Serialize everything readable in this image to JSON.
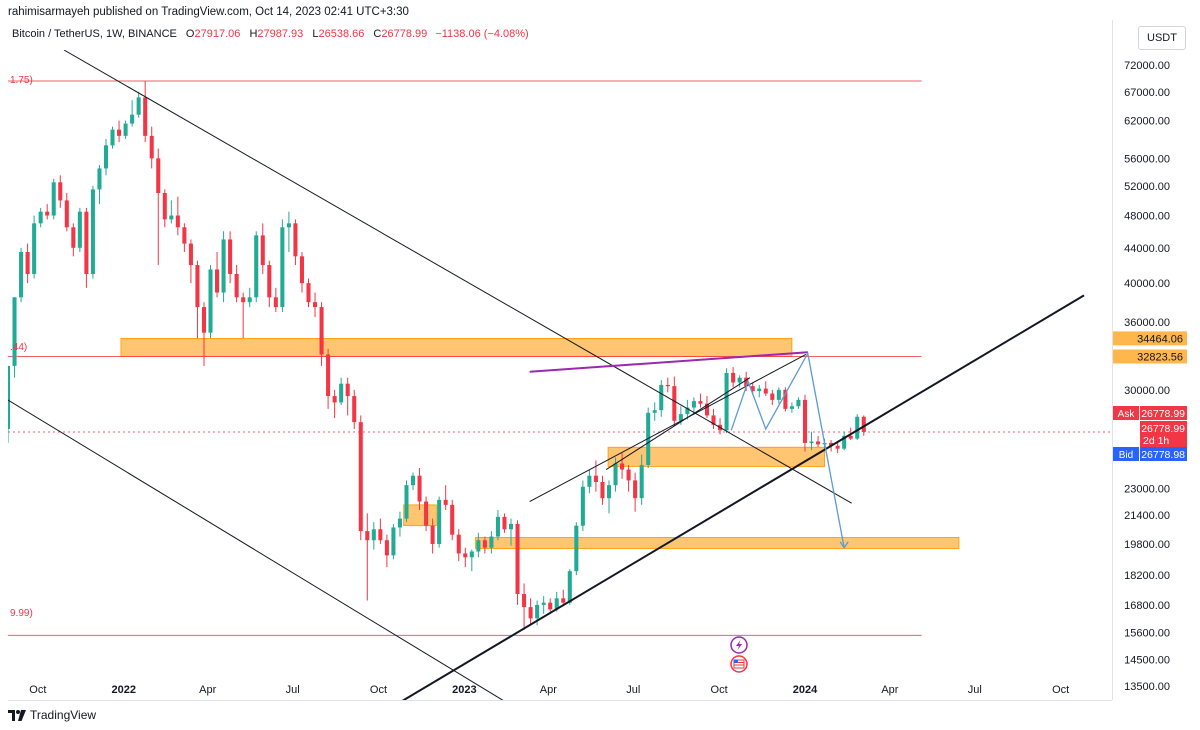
{
  "header": {
    "published_by": "rahimisarmayeh published on TradingView.com, Oct 14, 2023 02:41 UTC+3:30"
  },
  "legend": {
    "symbol": "Bitcoin / TetherUS, 1W, BINANCE",
    "open_label": "O",
    "open": "27917.06",
    "high_label": "H",
    "high": "27987.93",
    "low_label": "L",
    "low": "26538.66",
    "close_label": "C",
    "close": "26778.99",
    "change": "−1138.06 (−4.08%)"
  },
  "currency_button": "USDT",
  "brand": "TradingView",
  "fib_labels": {
    "top": "1.75)",
    "mid": ".44)",
    "bottom": "9.99)"
  },
  "price_tags": {
    "res1": "34464.06",
    "res2": "32823.56",
    "ask_label": "Ask",
    "ask": "26778.99",
    "last": "26778.99",
    "countdown": "2d 1h",
    "bid_label": "Bid",
    "bid": "26778.98"
  },
  "colors": {
    "up": "#22ab94",
    "down": "#f23645",
    "zone": "#ffb74d",
    "fib_line": "#f23645",
    "wedge_top": "#9c27b0",
    "projection": "#5b9bd5",
    "ask_bg": "#f23645",
    "bid_bg": "#2962ff"
  },
  "icons": [
    "lightning-icon",
    "us-flag-calendar-icon",
    "tradingview-logo-icon"
  ],
  "chart_data": {
    "type": "candlestick",
    "scale": "log",
    "ylim": [
      13000,
      75000
    ],
    "x_range": [
      "2021-08-30",
      "2024-11-25"
    ],
    "y_ticks": [
      72000,
      67000,
      62000,
      56000,
      52000,
      48000,
      44000,
      40000,
      36000,
      30000,
      23000,
      21400,
      19800,
      18200,
      16800,
      15600,
      14500,
      13500
    ],
    "x_ticks": [
      {
        "date": "2021-10-01",
        "label": "Oct"
      },
      {
        "date": "2022-01-01",
        "label": "2022"
      },
      {
        "date": "2022-04-01",
        "label": "Apr"
      },
      {
        "date": "2022-07-01",
        "label": "Jul"
      },
      {
        "date": "2022-10-01",
        "label": "Oct"
      },
      {
        "date": "2023-01-01",
        "label": "2023"
      },
      {
        "date": "2023-04-01",
        "label": "Apr"
      },
      {
        "date": "2023-07-01",
        "label": "Jul"
      },
      {
        "date": "2023-10-01",
        "label": "Oct"
      },
      {
        "date": "2024-01-01",
        "label": "2024"
      },
      {
        "date": "2024-04-01",
        "label": "Apr"
      },
      {
        "date": "2024-07-01",
        "label": "Jul"
      },
      {
        "date": "2024-10-01",
        "label": "Oct"
      }
    ],
    "candles": [
      [
        "2021-08-30",
        27000,
        32000,
        26000,
        32000
      ],
      [
        "2021-09-06",
        32000,
        38500,
        31000,
        38500
      ],
      [
        "2021-09-13",
        38500,
        44000,
        38000,
        43500
      ],
      [
        "2021-09-20",
        43500,
        44500,
        40000,
        41000
      ],
      [
        "2021-09-27",
        41000,
        48000,
        40500,
        47000
      ],
      [
        "2021-10-04",
        47000,
        49000,
        46500,
        48500
      ],
      [
        "2021-10-11",
        48500,
        49500,
        47500,
        48000
      ],
      [
        "2021-10-18",
        48000,
        53000,
        47500,
        52500
      ],
      [
        "2021-10-25",
        52500,
        53500,
        49000,
        50000
      ],
      [
        "2021-11-01",
        50000,
        51000,
        46000,
        46500
      ],
      [
        "2021-11-08",
        46500,
        47000,
        43000,
        44000
      ],
      [
        "2021-11-15",
        44000,
        49000,
        43500,
        48500
      ],
      [
        "2021-11-22",
        48500,
        49000,
        39500,
        41000
      ],
      [
        "2021-11-29",
        41000,
        52000,
        40500,
        51500
      ],
      [
        "2021-12-06",
        51500,
        55000,
        49500,
        54500
      ],
      [
        "2021-12-13",
        54500,
        59000,
        53500,
        58000
      ],
      [
        "2021-12-20",
        58000,
        61000,
        57500,
        60500
      ],
      [
        "2021-12-27",
        60500,
        62000,
        58500,
        59500
      ],
      [
        "2022-01-03",
        59500,
        62000,
        59000,
        61500
      ],
      [
        "2022-01-10",
        61500,
        65500,
        61000,
        63000
      ],
      [
        "2022-01-17",
        63000,
        67000,
        62500,
        66000
      ],
      [
        "2022-01-24",
        66000,
        69000,
        58500,
        59500
      ],
      [
        "2022-01-31",
        59500,
        61000,
        54500,
        56000
      ],
      [
        "2022-02-07",
        56000,
        57500,
        42000,
        51000
      ],
      [
        "2022-02-14",
        51000,
        51500,
        46500,
        47500
      ],
      [
        "2022-02-21",
        47500,
        50000,
        47000,
        48000
      ],
      [
        "2022-02-28",
        48000,
        50500,
        45500,
        46500
      ],
      [
        "2022-03-07",
        46500,
        47000,
        43500,
        44500
      ],
      [
        "2022-03-14",
        44500,
        45000,
        40000,
        42000
      ],
      [
        "2022-03-21",
        42000,
        42500,
        34500,
        37500
      ],
      [
        "2022-03-28",
        37500,
        38000,
        32000,
        35000
      ],
      [
        "2022-04-04",
        35000,
        42000,
        34500,
        41500
      ],
      [
        "2022-04-11",
        41500,
        43500,
        38500,
        39000
      ],
      [
        "2022-04-18",
        39000,
        46000,
        38000,
        45000
      ],
      [
        "2022-04-25",
        45000,
        46000,
        40000,
        41000
      ],
      [
        "2022-05-02",
        41000,
        42000,
        38000,
        38500
      ],
      [
        "2022-05-09",
        38500,
        39000,
        34500,
        38000
      ],
      [
        "2022-05-16",
        38000,
        39500,
        37500,
        38500
      ],
      [
        "2022-05-23",
        38500,
        46000,
        38000,
        45500
      ],
      [
        "2022-05-30",
        45500,
        47000,
        41000,
        42000
      ],
      [
        "2022-06-06",
        42000,
        42500,
        37500,
        38500
      ],
      [
        "2022-06-13",
        38500,
        39500,
        37000,
        37500
      ],
      [
        "2022-06-20",
        37500,
        47500,
        37000,
        46500
      ],
      [
        "2022-06-27",
        46500,
        48500,
        43500,
        47000
      ],
      [
        "2022-07-04",
        47000,
        47500,
        42000,
        43000
      ],
      [
        "2022-07-11",
        43000,
        43500,
        39000,
        40000
      ],
      [
        "2022-07-18",
        40000,
        40500,
        37500,
        38000
      ],
      [
        "2022-07-25",
        38000,
        39000,
        36500,
        37500
      ],
      [
        "2022-08-01",
        37500,
        38000,
        32000,
        33000
      ],
      [
        "2022-08-08",
        33000,
        33500,
        28500,
        29500
      ],
      [
        "2022-08-15",
        29500,
        30000,
        27800,
        29000
      ],
      [
        "2022-08-22",
        29000,
        31000,
        28800,
        30500
      ],
      [
        "2022-08-29",
        30500,
        31000,
        28000,
        29500
      ],
      [
        "2022-09-05",
        29500,
        30000,
        27000,
        27500
      ],
      [
        "2022-09-12",
        27500,
        28000,
        20000,
        20500
      ],
      [
        "2022-09-19",
        20500,
        21500,
        17000,
        20000
      ],
      [
        "2022-09-26",
        20000,
        21000,
        19500,
        20600
      ],
      [
        "2022-10-03",
        20600,
        21200,
        19800,
        20000
      ],
      [
        "2022-10-10",
        20000,
        20300,
        18600,
        19200
      ],
      [
        "2022-10-17",
        19200,
        20900,
        19000,
        20700
      ],
      [
        "2022-10-24",
        20700,
        21600,
        20200,
        21200
      ],
      [
        "2022-10-31",
        21200,
        23500,
        21000,
        23200
      ],
      [
        "2022-11-07",
        23200,
        24000,
        22900,
        23800
      ],
      [
        "2022-11-14",
        23800,
        24300,
        21700,
        22200
      ],
      [
        "2022-11-21",
        22200,
        22500,
        20500,
        20800
      ],
      [
        "2022-11-28",
        20800,
        21200,
        19300,
        19800
      ],
      [
        "2022-12-05",
        19800,
        22500,
        19600,
        22300
      ],
      [
        "2022-12-12",
        22300,
        23200,
        21700,
        22000
      ],
      [
        "2022-12-19",
        22000,
        22300,
        20000,
        20300
      ],
      [
        "2022-12-26",
        20300,
        20600,
        18900,
        19300
      ],
      [
        "2023-01-02",
        19300,
        19600,
        18600,
        19100
      ],
      [
        "2023-01-09",
        19100,
        19500,
        18400,
        19400
      ],
      [
        "2023-01-16",
        19400,
        20400,
        19100,
        20000
      ],
      [
        "2023-01-23",
        20000,
        20200,
        19300,
        19600
      ],
      [
        "2023-01-30",
        19600,
        20500,
        19300,
        20200
      ],
      [
        "2023-02-06",
        20200,
        21700,
        20000,
        21300
      ],
      [
        "2023-02-13",
        21300,
        21500,
        20400,
        20600
      ],
      [
        "2023-02-20",
        20600,
        21200,
        19700,
        20900
      ],
      [
        "2023-02-27",
        20900,
        21100,
        16800,
        17300
      ],
      [
        "2023-03-06",
        17300,
        17800,
        15700,
        16700
      ],
      [
        "2023-03-13",
        16700,
        17100,
        15900,
        16200
      ],
      [
        "2023-03-20",
        16200,
        17000,
        15900,
        16800
      ],
      [
        "2023-03-27",
        16800,
        17200,
        16400,
        16900
      ],
      [
        "2023-04-03",
        16900,
        17100,
        16500,
        16600
      ],
      [
        "2023-04-10",
        16600,
        17400,
        16500,
        17100
      ],
      [
        "2023-04-17",
        17100,
        17500,
        16800,
        16900
      ],
      [
        "2023-04-24",
        16900,
        18500,
        16800,
        18400
      ],
      [
        "2023-05-01",
        18400,
        21000,
        18200,
        20800
      ],
      [
        "2023-05-08",
        20800,
        23500,
        20500,
        23100
      ],
      [
        "2023-05-15",
        23100,
        24200,
        22700,
        23800
      ],
      [
        "2023-05-22",
        23800,
        24800,
        22800,
        23400
      ],
      [
        "2023-05-29",
        23400,
        23800,
        22000,
        22400
      ],
      [
        "2023-06-05",
        22400,
        23500,
        21500,
        23200
      ],
      [
        "2023-06-12",
        23200,
        25000,
        22800,
        24600
      ],
      [
        "2023-06-19",
        24600,
        25300,
        23600,
        24200
      ],
      [
        "2023-06-26",
        24200,
        24500,
        22800,
        23500
      ],
      [
        "2023-07-03",
        23500,
        24000,
        21600,
        22400
      ],
      [
        "2023-07-10",
        22400,
        25200,
        22000,
        24500
      ],
      [
        "2023-07-17",
        24500,
        28600,
        24300,
        28200
      ],
      [
        "2023-07-24",
        28200,
        29000,
        27600,
        28400
      ],
      [
        "2023-07-31",
        28400,
        30800,
        27900,
        30400
      ],
      [
        "2023-08-07",
        30400,
        31000,
        29800,
        30300
      ],
      [
        "2023-08-14",
        30300,
        31100,
        27200,
        27600
      ],
      [
        "2023-08-21",
        27600,
        28700,
        27300,
        28100
      ],
      [
        "2023-08-28",
        28100,
        29200,
        27700,
        28600
      ],
      [
        "2023-09-04",
        28600,
        29400,
        28200,
        29100
      ],
      [
        "2023-09-11",
        29100,
        29700,
        28600,
        28900
      ],
      [
        "2023-09-18",
        28900,
        29500,
        27800,
        28000
      ],
      [
        "2023-09-25",
        28000,
        28500,
        27000,
        27300
      ],
      [
        "2023-10-02",
        27300,
        27800,
        26600,
        26900
      ],
      [
        "2023-10-09",
        26900,
        31800,
        26700,
        31400
      ],
      [
        "2023-10-16",
        31400,
        31900,
        30200,
        30600
      ],
      [
        "2023-10-23",
        30600,
        31200,
        30200,
        31000
      ],
      [
        "2023-10-30",
        31000,
        31500,
        29900,
        30300
      ],
      [
        "2023-11-06",
        30300,
        30600,
        29600,
        29900
      ],
      [
        "2023-11-13",
        29900,
        30400,
        29400,
        30100
      ],
      [
        "2023-11-20",
        30100,
        30700,
        29500,
        29700
      ],
      [
        "2023-11-27",
        29700,
        30000,
        28800,
        29200
      ],
      [
        "2023-12-04",
        29200,
        30200,
        28900,
        30000
      ],
      [
        "2023-12-11",
        30000,
        30200,
        28300,
        28500
      ],
      [
        "2023-12-18",
        28500,
        29000,
        28200,
        28700
      ],
      [
        "2023-12-25",
        28700,
        29400,
        28500,
        29200
      ],
      [
        "2024-01-01",
        29200,
        29600,
        25400,
        26000
      ],
      [
        "2024-01-08",
        26000,
        26800,
        25500,
        26100
      ],
      [
        "2024-01-15",
        26100,
        26500,
        25700,
        25900
      ],
      [
        "2024-01-22",
        25900,
        26300,
        25600,
        26000
      ],
      [
        "2024-01-29",
        26000,
        26200,
        25400,
        25800
      ],
      [
        "2024-02-05",
        25800,
        26100,
        25300,
        25600
      ],
      [
        "2024-02-12",
        25600,
        26800,
        25500,
        26500
      ],
      [
        "2024-02-19",
        26500,
        27100,
        26200,
        26300
      ],
      [
        "2024-02-26",
        26300,
        28100,
        26200,
        27900
      ],
      [
        "2024-03-04",
        27900,
        28000,
        26500,
        26779
      ]
    ],
    "horizontal_lines": [
      {
        "price": 68990,
        "color": "#f23645",
        "from": "2021-08-30",
        "to": "2024-05-05"
      },
      {
        "price": 32823.56,
        "color": "#f23645",
        "from": "2021-08-30",
        "to": "2024-05-05"
      },
      {
        "price": 15476,
        "color": "#f23645",
        "from": "2021-08-30",
        "to": "2024-05-05"
      },
      {
        "price": 26778.99,
        "color": "#f23645",
        "dashed": true,
        "from": "2021-08-30",
        "to": "2024-11-25"
      }
    ],
    "zones": [
      {
        "from": "2021-12-29",
        "to": "2023-12-18",
        "top": 34464.06,
        "bottom": 32823.56
      },
      {
        "from": "2023-06-04",
        "to": "2024-01-22",
        "top": 25700,
        "bottom": 24400
      },
      {
        "from": "2023-01-13",
        "to": "2024-06-14",
        "top": 20150,
        "bottom": 19550
      },
      {
        "from": "2022-10-28",
        "to": "2022-12-02",
        "top": 22000,
        "bottom": 20800
      }
    ],
    "trendlines": [
      {
        "p1": [
          "2021-10-29",
          75000
        ],
        "p2": [
          "2024-02-20",
          22100
        ],
        "color": "#131722",
        "width": 1
      },
      {
        "p1": [
          "2021-08-23",
          29500
        ],
        "p2": [
          "2023-02-21",
          12800
        ],
        "color": "#131722",
        "width": 1
      },
      {
        "p1": [
          "2022-10-23",
          12900
        ],
        "p2": [
          "2024-10-26",
          38700
        ],
        "color": "#131722",
        "width": 2
      },
      {
        "p1": [
          "2023-03-12",
          31500
        ],
        "p2": [
          "2024-01-04",
          33200
        ],
        "color": "#9c27b0",
        "width": 2
      },
      {
        "p1": [
          "2023-03-12",
          22200
        ],
        "p2": [
          "2024-01-02",
          33000
        ],
        "color": "#131722",
        "width": 1
      },
      {
        "p1": [
          "2023-06-02",
          24200
        ],
        "p2": [
          "2023-11-03",
          31000
        ],
        "color": "#131722",
        "width": 1
      }
    ],
    "projection": {
      "color": "#5b9bd5",
      "points": [
        [
          "2023-10-14",
          26900
        ],
        [
          "2023-11-01",
          30700
        ],
        [
          "2023-11-20",
          27000
        ],
        [
          "2024-01-04",
          33100
        ],
        [
          "2024-02-12",
          19600
        ]
      ]
    },
    "price_scale": {
      "last": 26778.99,
      "ask": 26778.99,
      "bid": 26778.98
    }
  }
}
